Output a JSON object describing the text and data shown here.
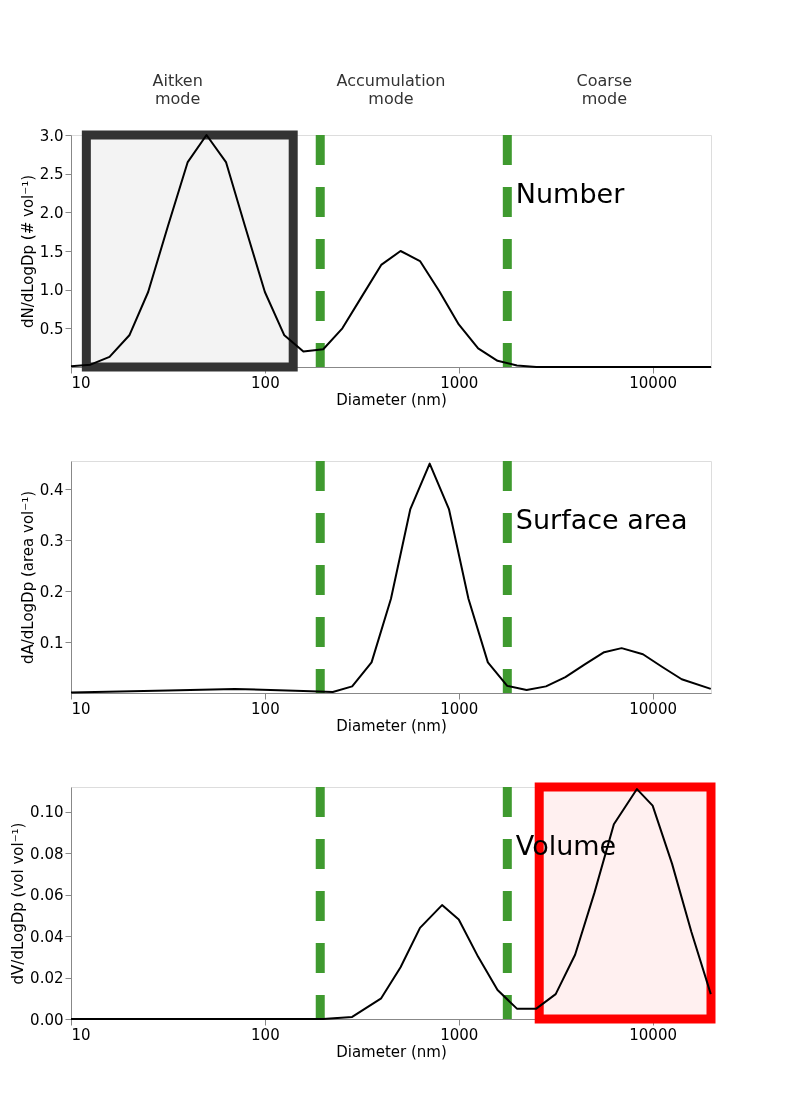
{
  "chart_data": [
    {
      "type": "line",
      "title": "Number",
      "xlabel": "Diameter (nm)",
      "ylabel": "dN/dLogDp (# vol⁻¹)",
      "log": "x",
      "grid": false,
      "x": [
        10,
        12.6,
        15.8,
        20,
        25,
        31.6,
        40,
        50,
        63,
        79,
        100,
        126,
        158,
        200,
        251,
        316,
        398,
        501,
        631,
        794,
        1000,
        1259,
        1585,
        1995,
        2512,
        3162,
        5000,
        10000,
        20000
      ],
      "series": [
        {
          "color": "#000000",
          "values": [
            0.01,
            0.03,
            0.13,
            0.41,
            0.97,
            1.82,
            2.65,
            3.0,
            2.65,
            1.82,
            0.97,
            0.41,
            0.2,
            0.23,
            0.5,
            0.91,
            1.32,
            1.5,
            1.37,
            0.98,
            0.55,
            0.24,
            0.08,
            0.02,
            0.0,
            0.0,
            0.0,
            0.0,
            0.0
          ]
        }
      ],
      "xlim": [
        10,
        20000
      ],
      "xticks": [
        10,
        100,
        1000,
        10000
      ],
      "ylim": [
        0,
        3.0
      ],
      "yticks": [
        0.5,
        {
          "value": 1,
          "label": "1.0"
        },
        1.5,
        {
          "value": 2,
          "label": "2.0"
        },
        2.5,
        {
          "value": 3,
          "label": "3.0"
        }
      ],
      "annotations": [
        "Aitken mode",
        "Accumulation mode",
        "Coarse mode"
      ],
      "ref_lines": [
        {
          "axis": "x",
          "value": 193,
          "color": "#3f9a2f",
          "line_style": "dashed"
        },
        {
          "axis": "x",
          "value": 1780,
          "color": "#3f9a2f",
          "line_style": "dashed"
        }
      ],
      "bands": [
        {
          "axis": "x",
          "from": 12,
          "to": 140,
          "color": "#333333"
        }
      ]
    },
    {
      "type": "line",
      "title": "Surface area",
      "xlabel": "Diameter (nm)",
      "ylabel": "dA/dLogDp (area vol⁻¹)",
      "log": "x",
      "grid": false,
      "x": [
        10,
        31.6,
        70,
        158,
        224,
        282,
        355,
        447,
        562,
        708,
        891,
        1122,
        1413,
        1778,
        2239,
        2818,
        3548,
        4467,
        5623,
        6918,
        8913,
        11220,
        14125,
        19953
      ],
      "series": [
        {
          "color": "#000000",
          "values": [
            0.001,
            0.005,
            0.008,
            0.004,
            0.002,
            0.013,
            0.06,
            0.185,
            0.36,
            0.45,
            0.36,
            0.185,
            0.06,
            0.014,
            0.006,
            0.013,
            0.031,
            0.056,
            0.08,
            0.088,
            0.076,
            0.051,
            0.027,
            0.008
          ]
        }
      ],
      "xlim": [
        10,
        20000
      ],
      "xticks": [
        10,
        100,
        1000,
        10000
      ],
      "ylim": [
        0,
        0.455
      ],
      "yticks": [
        0.1,
        0.2,
        0.3,
        0.4
      ],
      "ref_lines": [
        {
          "axis": "x",
          "value": 193,
          "color": "#3f9a2f",
          "line_style": "dashed"
        },
        {
          "axis": "x",
          "value": 1780,
          "color": "#3f9a2f",
          "line_style": "dashed"
        }
      ]
    },
    {
      "type": "line",
      "title": "Volume",
      "xlabel": "Diameter (nm)",
      "ylabel": "dV/dLogDp (vol vol⁻¹)",
      "log": "x",
      "grid": false,
      "x": [
        10,
        100,
        200,
        282,
        398,
        501,
        631,
        820,
        1000,
        1259,
        1585,
        1995,
        2512,
        3162,
        3981,
        5012,
        6310,
        8300,
        10000,
        12589,
        15849,
        19953
      ],
      "series": [
        {
          "color": "#000000",
          "values": [
            0.0,
            0.0,
            0.0,
            0.001,
            0.01,
            0.025,
            0.044,
            0.055,
            0.048,
            0.03,
            0.014,
            0.005,
            0.005,
            0.012,
            0.031,
            0.061,
            0.094,
            0.111,
            0.103,
            0.075,
            0.042,
            0.012
          ]
        }
      ],
      "xlim": [
        10,
        20000
      ],
      "xticks": [
        10,
        100,
        1000,
        10000
      ],
      "ylim": [
        0,
        0.112
      ],
      "yticks": [
        {
          "value": 0,
          "label": "0.00"
        },
        {
          "value": 0.02,
          "label": "0.02"
        },
        {
          "value": 0.04,
          "label": "0.04"
        },
        {
          "value": 0.06,
          "label": "0.06"
        },
        {
          "value": 0.08,
          "label": "0.08"
        },
        {
          "value": 0.1,
          "label": "0.10"
        }
      ],
      "ref_lines": [
        {
          "axis": "x",
          "value": 193,
          "color": "#3f9a2f",
          "line_style": "dashed"
        },
        {
          "axis": "x",
          "value": 1780,
          "color": "#3f9a2f",
          "line_style": "dashed"
        }
      ],
      "bands": [
        {
          "axis": "x",
          "from": 2600,
          "to": 20000,
          "color": "#ff0000"
        }
      ]
    }
  ]
}
